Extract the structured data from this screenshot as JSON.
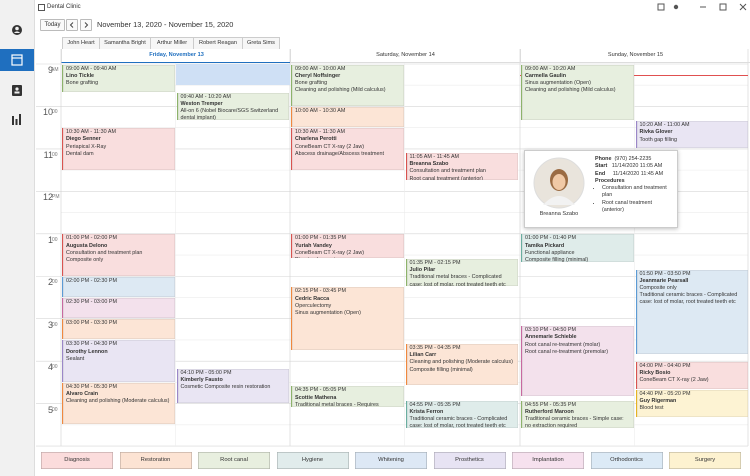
{
  "app": {
    "title": "Dental Clinic"
  },
  "toolbar": {
    "today": "Today",
    "range": "November 13, 2020 - November 15, 2020"
  },
  "tabs": [
    "John Heart",
    "Samantha Bright",
    "Arthur Miller",
    "Robert Reagan",
    "Greta Sims"
  ],
  "hours": [
    {
      "hour": "9",
      "suffix": "AM"
    },
    {
      "hour": "10",
      "suffix": "00"
    },
    {
      "hour": "11",
      "suffix": "00"
    },
    {
      "hour": "12",
      "suffix": "PM"
    },
    {
      "hour": "1",
      "suffix": "00"
    },
    {
      "hour": "2",
      "suffix": "00"
    },
    {
      "hour": "3",
      "suffix": "00"
    },
    {
      "hour": "4",
      "suffix": "00"
    },
    {
      "hour": "5",
      "suffix": "00"
    }
  ],
  "days": [
    {
      "header": "Friday, November 13",
      "columns": [
        [
          {
            "time": "09:00 AM - 09:40 AM",
            "name": "Lino Tickle",
            "lines": [
              "Bone grafting"
            ],
            "color": "#e7efdf",
            "bar": "#8db36b"
          },
          {
            "time": "10:30 AM - 11:30 AM",
            "name": "Diego Senner",
            "lines": [
              "Periapical X-Ray",
              "Dental dam"
            ],
            "color": "#f9dede",
            "bar": "#d9534f"
          },
          {
            "time": "01:00 PM - 02:00 PM",
            "name": "Augusta Delono",
            "lines": [
              "Consultation and treatment plan",
              "Composite only"
            ],
            "color": "#f9dede",
            "bar": "#d9534f"
          },
          {
            "time": "02:00 PM - 02:30 PM",
            "name": "",
            "lines": [],
            "color": "#dde9f3",
            "bar": "#5b9bd5"
          },
          {
            "time": "02:30 PM - 03:00 PM",
            "name": "",
            "lines": [],
            "color": "#f3e1ec",
            "bar": "#c869a0"
          },
          {
            "time": "03:00 PM - 03:30 PM",
            "name": "",
            "lines": [],
            "color": "#fce5d6",
            "bar": "#f0883e"
          },
          {
            "time": "03:30 PM - 04:30 PM",
            "name": "Dorothy Lennon",
            "lines": [
              "Sealant"
            ],
            "color": "#e9e5f3",
            "bar": "#9b87c8"
          },
          {
            "time": "04:30 PM - 05:30 PM",
            "name": "Alvaro Crain",
            "lines": [
              "Cleaning and polishing (Moderate calculus)"
            ],
            "color": "#fce5d6",
            "bar": "#f0883e"
          }
        ],
        [
          {
            "time": "09:40 AM - 10:20 AM",
            "name": "Weston Tremper",
            "lines": [
              "All-on 6 (Nobel Biocare/SGS Switzerland dental implant)"
            ],
            "color": "#e7efdf",
            "bar": "#8db36b"
          },
          {
            "time": "04:10 PM - 05:00 PM",
            "name": "Kimberly Fausto",
            "lines": [
              "Cosmetic Composite resin restoration"
            ],
            "color": "#e9e5f3",
            "bar": "#9b87c8"
          }
        ]
      ]
    },
    {
      "header": "Saturday, November 14",
      "columns": [
        [
          {
            "time": "09:00 AM - 10:00 AM",
            "name": "Cheryl Noffsinger",
            "lines": [
              "Bone grafting",
              "Cleaning and polishing (Mild calculus)"
            ],
            "color": "#e7efdf",
            "bar": "#8db36b"
          },
          {
            "time": "10:00 AM - 10:30 AM",
            "name": "",
            "lines": [],
            "color": "#fce5d6",
            "bar": "#f0883e"
          },
          {
            "time": "10:30 AM - 11:30 AM",
            "name": "Charlena Perotti",
            "lines": [
              "ConeBeam CT X-ray (2 Jaw)",
              "Abscess drainage/Abscess treatment"
            ],
            "color": "#f9dede",
            "bar": "#d9534f"
          },
          {
            "time": "01:00 PM - 01:35 PM",
            "name": "Yuriah Vandey",
            "lines": [
              "ConeBeam CT X-ray (2 Jaw)",
              "Direct pulp capping"
            ],
            "color": "#f9dede",
            "bar": "#d9534f"
          },
          {
            "time": "02:15 PM - 03:45 PM",
            "name": "Cedric Racca",
            "lines": [
              "Operculectomy",
              "Sinus augmentation (Open)"
            ],
            "color": "#fce5d6",
            "bar": "#f0883e"
          },
          {
            "time": "04:35 PM - 05:05 PM",
            "name": "Scottie Mathena",
            "lines": [
              "Traditional metal braces - Requires extraction (fee for extraction is not"
            ],
            "color": "#e7efdf",
            "bar": "#8db36b"
          }
        ],
        [
          {
            "time": "11:05 AM - 11:45 AM",
            "name": "Breanna Szabo",
            "lines": [
              "Consultation and treatment plan",
              "Root canal treatment (anterior)"
            ],
            "color": "#f9dede",
            "bar": "#d9534f"
          },
          {
            "time": "01:35 PM - 02:15 PM",
            "name": "Julio Pilar",
            "lines": [
              "Traditional metal braces - Complicated case: lost of molar, root treated teeth etc"
            ],
            "color": "#e7efdf",
            "bar": "#8db36b"
          },
          {
            "time": "03:35 PM - 04:35 PM",
            "name": "Lilian Carr",
            "lines": [
              "Cleaning and polishing (Moderate calculus)",
              "Composite filling (minimal)"
            ],
            "color": "#fce5d6",
            "bar": "#f0883e"
          },
          {
            "time": "04:55 PM - 05:35 PM",
            "name": "Krista Ferron",
            "lines": [
              "Traditional ceramic braces - Complicated case: lost of molar, root treated teeth etc"
            ],
            "color": "#dfecea",
            "bar": "#6aaea0"
          }
        ]
      ]
    },
    {
      "header": "Sunday, November 15",
      "columns": [
        [
          {
            "time": "09:00 AM - 10:20 AM",
            "name": "Carmella Gaulin",
            "lines": [
              "Sinus augmentation (Open)",
              "Cleaning and polishing (Mild calculus)"
            ],
            "color": "#e7efdf",
            "bar": "#8db36b"
          },
          {
            "time": "01:00 PM - 01:40 PM",
            "name": "Tamika Pickard",
            "lines": [
              "Functional appliance",
              "Composite filling (minimal)"
            ],
            "color": "#dfecea",
            "bar": "#6aaea0"
          },
          {
            "time": "03:10 PM - 04:50 PM",
            "name": "Annemarie Schieble",
            "lines": [
              "Root canal re-treatment (molar)",
              "Root canal re-treatment (premolar)"
            ],
            "color": "#f3e1ec",
            "bar": "#c869a0"
          },
          {
            "time": "04:55 PM - 05:35 PM",
            "name": "Rutherford Maroon",
            "lines": [
              "Traditional ceramic braces - Simple case: no extraction required"
            ],
            "color": "#e7efdf",
            "bar": "#8db36b"
          }
        ],
        [
          {
            "time": "10:20 AM - 11:00 AM",
            "name": "Rivka Glover",
            "lines": [
              "Tooth gap filling"
            ],
            "color": "#e9e5f3",
            "bar": "#9b87c8"
          },
          {
            "time": "01:50 PM - 03:50 PM",
            "name": "Jeanmarie Pearsall",
            "lines": [
              "Composite only",
              "Traditional ceramic braces - Complicated case: lost of molar, root treated teeth etc"
            ],
            "color": "#dde9f3",
            "bar": "#5b9bd5"
          },
          {
            "time": "04:00 PM - 04:40 PM",
            "name": "Ricky Bosio",
            "lines": [
              "ConeBeam CT X-ray (2 Jaw)"
            ],
            "color": "#f9dede",
            "bar": "#d9534f"
          },
          {
            "time": "04:40 PM - 05:20 PM",
            "name": "Guy Rigerman",
            "lines": [
              "Blood test"
            ],
            "color": "#fdf3d3",
            "bar": "#e6b422"
          }
        ]
      ]
    }
  ],
  "popup": {
    "name": "Breanna Szabo",
    "phone_label": "Phone",
    "phone": "(970) 254-2235",
    "start_label": "Start",
    "start": "11/14/2020 11:05 AM",
    "end_label": "End",
    "end": "11/14/2020 11:45 AM",
    "procedures_label": "Procedures",
    "procedures": [
      "Consultation and treatment plan",
      "Root canal treatment (anterior)"
    ]
  },
  "legend": [
    {
      "name": "Diagnosis",
      "color": "#fbdcdc"
    },
    {
      "name": "Restoration",
      "color": "#fce3d3"
    },
    {
      "name": "Root canal",
      "color": "#e8efdf"
    },
    {
      "name": "Hygiene",
      "color": "#e1ecec"
    },
    {
      "name": "Whitening",
      "color": "#dde8f5"
    },
    {
      "name": "Prosthetics",
      "color": "#e7e3f3"
    },
    {
      "name": "Implantation",
      "color": "#f6e1ee"
    },
    {
      "name": "Orthodontics",
      "color": "#dceaf6"
    },
    {
      "name": "Surgery",
      "color": "#fdf2d0"
    }
  ]
}
